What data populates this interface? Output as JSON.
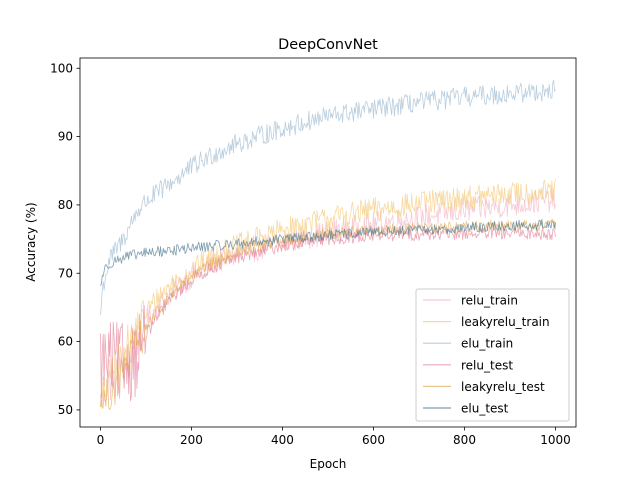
{
  "chart_data": {
    "type": "line",
    "title": "DeepConvNet",
    "xlabel": "Epoch",
    "ylabel": "Accuracy (%)",
    "xlim": [
      -45,
      1045
    ],
    "ylim": [
      47.5,
      101.5
    ],
    "xticks": [
      0,
      200,
      400,
      600,
      800,
      1000
    ],
    "yticks": [
      50,
      60,
      70,
      80,
      90,
      100
    ],
    "grid": false,
    "legend_position": "lower-right",
    "series": [
      {
        "name": "relu_train",
        "color": "#f4b8c8",
        "opacity": 0.75,
        "points": [
          [
            0,
            51
          ],
          [
            10,
            53
          ],
          [
            20,
            54
          ],
          [
            40,
            55
          ],
          [
            60,
            57
          ],
          [
            80,
            60
          ],
          [
            100,
            63
          ],
          [
            150,
            67
          ],
          [
            200,
            69.5
          ],
          [
            250,
            71.5
          ],
          [
            300,
            72.8
          ],
          [
            400,
            74.5
          ],
          [
            500,
            76
          ],
          [
            600,
            77.2
          ],
          [
            700,
            78.2
          ],
          [
            800,
            79.2
          ],
          [
            900,
            80
          ],
          [
            1000,
            80.8
          ]
        ],
        "noise": 1.8
      },
      {
        "name": "leakyrelu_train",
        "color": "#f5cc80",
        "opacity": 0.75,
        "points": [
          [
            0,
            51
          ],
          [
            10,
            53
          ],
          [
            20,
            55
          ],
          [
            40,
            57
          ],
          [
            60,
            59.5
          ],
          [
            80,
            62
          ],
          [
            100,
            64.5
          ],
          [
            150,
            68
          ],
          [
            200,
            70.5
          ],
          [
            250,
            72.5
          ],
          [
            300,
            74
          ],
          [
            400,
            76.3
          ],
          [
            500,
            78
          ],
          [
            600,
            79.3
          ],
          [
            700,
            80.2
          ],
          [
            800,
            81
          ],
          [
            900,
            81.6
          ],
          [
            1000,
            82
          ]
        ],
        "noise": 1.8
      },
      {
        "name": "elu_train",
        "color": "#a9c2d6",
        "opacity": 0.8,
        "points": [
          [
            0,
            64
          ],
          [
            5,
            68
          ],
          [
            20,
            72
          ],
          [
            50,
            75
          ],
          [
            80,
            79
          ],
          [
            100,
            80.5
          ],
          [
            150,
            83
          ],
          [
            200,
            85.5
          ],
          [
            250,
            87.5
          ],
          [
            300,
            89
          ],
          [
            400,
            91.2
          ],
          [
            500,
            93
          ],
          [
            600,
            94
          ],
          [
            700,
            95
          ],
          [
            800,
            95.8
          ],
          [
            900,
            96.3
          ],
          [
            1000,
            96.8
          ]
        ],
        "noise": 1.5
      },
      {
        "name": "relu_test",
        "color": "#e07a92",
        "opacity": 0.65,
        "points": [
          [
            0,
            57
          ],
          [
            10,
            57
          ],
          [
            20,
            57
          ],
          [
            40,
            57
          ],
          [
            60,
            57
          ],
          [
            80,
            58
          ],
          [
            100,
            61
          ],
          [
            150,
            66
          ],
          [
            200,
            69
          ],
          [
            250,
            71
          ],
          [
            300,
            72.3
          ],
          [
            400,
            74
          ],
          [
            500,
            75
          ],
          [
            600,
            75.5
          ],
          [
            700,
            75.7
          ],
          [
            800,
            75.8
          ],
          [
            900,
            75.8
          ],
          [
            1000,
            75.8
          ]
        ],
        "noise": 0.9
      },
      {
        "name": "leakyrelu_test",
        "color": "#e0a84a",
        "opacity": 0.65,
        "points": [
          [
            0,
            51
          ],
          [
            20,
            52
          ],
          [
            40,
            54
          ],
          [
            60,
            57
          ],
          [
            80,
            59.5
          ],
          [
            100,
            62
          ],
          [
            150,
            66.5
          ],
          [
            200,
            69.5
          ],
          [
            250,
            71.5
          ],
          [
            300,
            73
          ],
          [
            400,
            74.8
          ],
          [
            500,
            75.8
          ],
          [
            600,
            76.3
          ],
          [
            700,
            76.6
          ],
          [
            800,
            76.8
          ],
          [
            900,
            77
          ],
          [
            1000,
            77
          ]
        ],
        "noise": 0.9
      },
      {
        "name": "elu_test",
        "color": "#4a7590",
        "opacity": 0.7,
        "points": [
          [
            0,
            68
          ],
          [
            5,
            70
          ],
          [
            20,
            71.5
          ],
          [
            50,
            72.3
          ],
          [
            100,
            73
          ],
          [
            150,
            73.3
          ],
          [
            200,
            73.7
          ],
          [
            300,
            74.3
          ],
          [
            400,
            75
          ],
          [
            500,
            75.5
          ],
          [
            600,
            76
          ],
          [
            700,
            76.3
          ],
          [
            800,
            76.6
          ],
          [
            900,
            76.9
          ],
          [
            1000,
            77.2
          ]
        ],
        "noise": 0.8
      }
    ]
  }
}
